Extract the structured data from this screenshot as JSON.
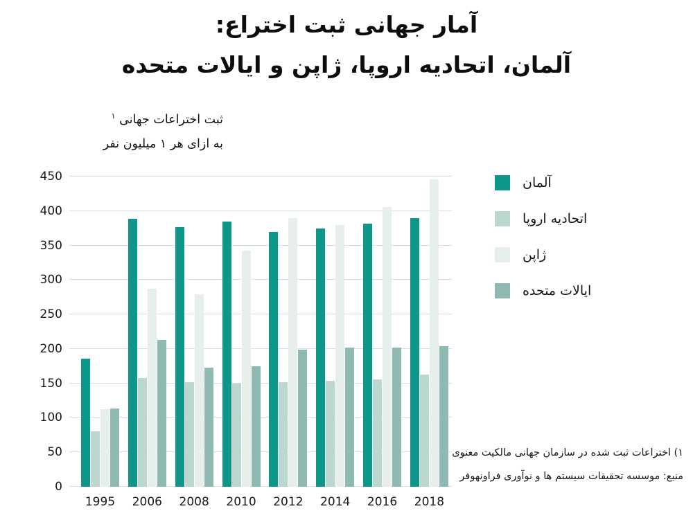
{
  "title": {
    "line1": "آمار جهانی ثبت اختراع:",
    "line2": "آلمان، اتحادیه اروپا، ژاپن و ایالات متحده"
  },
  "y_axis_caption": {
    "line1": "ثبت اختراعات جهانی",
    "superscript": "۱",
    "line2": "به ازای هر ۱ میلیون نفر"
  },
  "footnotes": {
    "note1": "۱) اختراعات ثبت شده در سازمان جهانی مالکیت معنوی",
    "note2": "منبع: موسسه تحقیقات سیستم ها و نوآوری فراونهوفر"
  },
  "colors": {
    "germany": "#0f968a",
    "eu": "#bcd6d0",
    "japan": "#e6efec",
    "us": "#8fbab2",
    "gridline": "#d6e0e2"
  },
  "chart_data": {
    "type": "bar",
    "categories": [
      "1995",
      "2006",
      "2008",
      "2010",
      "2012",
      "2014",
      "2016",
      "2018"
    ],
    "series": [
      {
        "id": "germany",
        "name": "آلمان",
        "color": "#0f968a",
        "values": [
          186,
          389,
          377,
          385,
          370,
          375,
          382,
          390
        ]
      },
      {
        "id": "eu",
        "name": "اتحادیه اروپا",
        "color": "#bcd6d0",
        "values": [
          80,
          158,
          152,
          150,
          152,
          154,
          156,
          163
        ]
      },
      {
        "id": "japan",
        "name": "ژاپن",
        "color": "#e6efec",
        "values": [
          113,
          287,
          279,
          343,
          390,
          380,
          406,
          446
        ]
      },
      {
        "id": "us",
        "name": "ایالات متحده",
        "color": "#8fbab2",
        "values": [
          114,
          213,
          173,
          175,
          199,
          202,
          202,
          204
        ]
      }
    ],
    "ylim": [
      0,
      450
    ],
    "ytick_step": 50,
    "grid": true,
    "legend_position": "right"
  }
}
